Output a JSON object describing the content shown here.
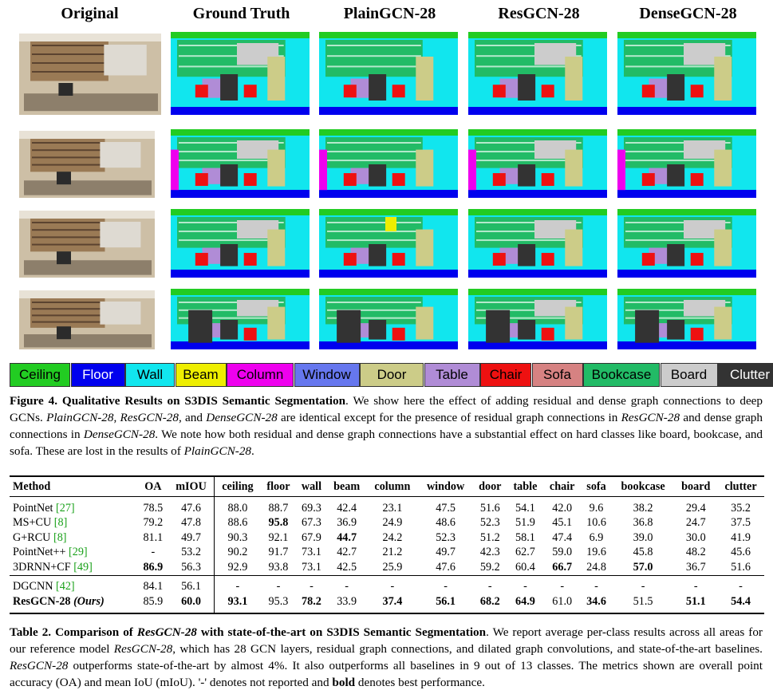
{
  "figure": {
    "columns": [
      "Original",
      "Ground Truth",
      "PlainGCN-28",
      "ResGCN-28",
      "DenseGCN-28"
    ],
    "legend": [
      {
        "label": "Ceiling",
        "color": "#22cc22",
        "text_color": "#000000"
      },
      {
        "label": "Floor",
        "color": "#0000ee",
        "text_color": "#ffffff"
      },
      {
        "label": "Wall",
        "color": "#11e6ee",
        "text_color": "#000000"
      },
      {
        "label": "Beam",
        "color": "#eeee00",
        "text_color": "#000000"
      },
      {
        "label": "Column",
        "color": "#ee00ee",
        "text_color": "#000000"
      },
      {
        "label": "Window",
        "color": "#6677ee",
        "text_color": "#000000"
      },
      {
        "label": "Door",
        "color": "#cccc88",
        "text_color": "#000000"
      },
      {
        "label": "Table",
        "color": "#b08cd6",
        "text_color": "#000000"
      },
      {
        "label": "Chair",
        "color": "#ee1111",
        "text_color": "#000000"
      },
      {
        "label": "Sofa",
        "color": "#d68282",
        "text_color": "#000000"
      },
      {
        "label": "Bookcase",
        "color": "#22bb66",
        "text_color": "#000000"
      },
      {
        "label": "Board",
        "color": "#cccccc",
        "text_color": "#000000"
      },
      {
        "label": "Clutter",
        "color": "#333333",
        "text_color": "#ffffff"
      }
    ],
    "caption_label": "Figure 4.",
    "caption_title": "Qualitative Results on S3DIS Semantic Segmentation",
    "caption_parts": [
      ". We show here the effect of adding residual and dense graph connections to deep GCNs. ",
      "PlainGCN-28",
      ", ",
      "ResGCN-28",
      ", and ",
      "DenseGCN-28",
      " are identical except for the presence of residual graph connections in ",
      "ResGCN-28",
      " and dense graph connections in ",
      "DenseGCN-28",
      ". We note how both residual and dense graph connections have a substantial effect on hard classes like board, bookcase, and sofa. These are lost in the results of ",
      "PlainGCN-28",
      "."
    ]
  },
  "table": {
    "headers": [
      "Method",
      "OA",
      "mIOU",
      "ceiling",
      "floor",
      "wall",
      "beam",
      "column",
      "window",
      "door",
      "table",
      "chair",
      "sofa",
      "bookcase",
      "board",
      "clutter"
    ],
    "rows": [
      {
        "method": "PointNet",
        "cite": "[27]",
        "ours": "",
        "values": [
          "78.5",
          "47.6",
          "88.0",
          "88.7",
          "69.3",
          "42.4",
          "23.1",
          "47.5",
          "51.6",
          "54.1",
          "42.0",
          "9.6",
          "38.2",
          "29.4",
          "35.2"
        ],
        "bold": []
      },
      {
        "method": "MS+CU",
        "cite": "[8]",
        "ours": "",
        "values": [
          "79.2",
          "47.8",
          "88.6",
          "95.8",
          "67.3",
          "36.9",
          "24.9",
          "48.6",
          "52.3",
          "51.9",
          "45.1",
          "10.6",
          "36.8",
          "24.7",
          "37.5"
        ],
        "bold": [
          3
        ]
      },
      {
        "method": "G+RCU",
        "cite": "[8]",
        "ours": "",
        "values": [
          "81.1",
          "49.7",
          "90.3",
          "92.1",
          "67.9",
          "44.7",
          "24.2",
          "52.3",
          "51.2",
          "58.1",
          "47.4",
          "6.9",
          "39.0",
          "30.0",
          "41.9"
        ],
        "bold": [
          5
        ]
      },
      {
        "method": "PointNet++",
        "cite": "[29]",
        "ours": "",
        "values": [
          "-",
          "53.2",
          "90.2",
          "91.7",
          "73.1",
          "42.7",
          "21.2",
          "49.7",
          "42.3",
          "62.7",
          "59.0",
          "19.6",
          "45.8",
          "48.2",
          "45.6"
        ],
        "bold": []
      },
      {
        "method": "3DRNN+CF",
        "cite": "[49]",
        "ours": "",
        "values": [
          "86.9",
          "56.3",
          "92.9",
          "93.8",
          "73.1",
          "42.5",
          "25.9",
          "47.6",
          "59.2",
          "60.4",
          "66.7",
          "24.8",
          "57.0",
          "36.7",
          "51.6"
        ],
        "bold": [
          0,
          10,
          12
        ]
      },
      {
        "method": "DGCNN",
        "cite": "[42]",
        "ours": "",
        "values": [
          "84.1",
          "56.1",
          "-",
          "-",
          "-",
          "-",
          "-",
          "-",
          "-",
          "-",
          "-",
          "-",
          "-",
          "-",
          "-"
        ],
        "bold": []
      },
      {
        "method": "ResGCN-28",
        "cite": "",
        "ours": "(Ours)",
        "values": [
          "85.9",
          "60.0",
          "93.1",
          "95.3",
          "78.2",
          "33.9",
          "37.4",
          "56.1",
          "68.2",
          "64.9",
          "61.0",
          "34.6",
          "51.5",
          "51.1",
          "54.4"
        ],
        "bold": [
          1,
          2,
          4,
          6,
          7,
          8,
          9,
          11,
          13,
          14
        ]
      }
    ],
    "caption_label": "Table 2.",
    "caption_title_pre": "Comparison of ",
    "caption_title_it": "ResGCN-28",
    "caption_title_post": " with state-of-the-art on S3DIS Semantic Segmentation",
    "caption_parts": [
      ". We report average per-class results across all areas for our reference model ",
      "ResGCN-28",
      ", which has 28 GCN layers, residual graph connections, and dilated graph convolutions, and state-of-the-art baselines. ",
      "ResGCN-28",
      " outperforms state-of-the-art by almost 4%. It also outperforms all baselines in 9 out of 13 classes. The metrics shown are overall point accuracy (OA) and mean IoU (mIoU). '-' denotes not reported and ",
      "bold",
      " denotes best performance."
    ]
  }
}
